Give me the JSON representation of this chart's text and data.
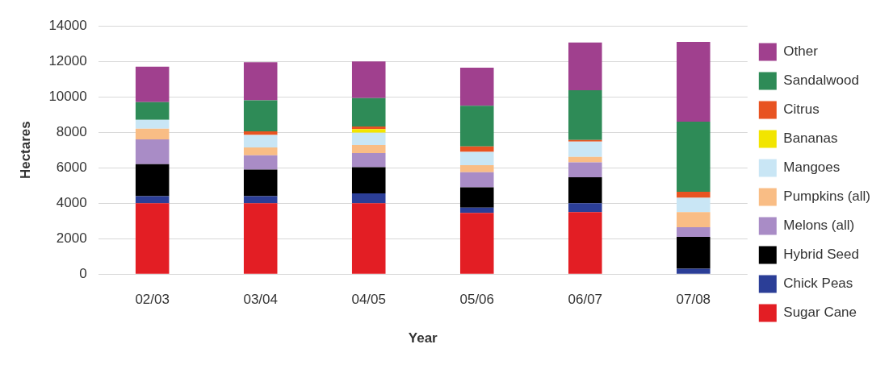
{
  "chart_data": {
    "type": "bar",
    "stacked": true,
    "xlabel": "Year",
    "ylabel": "Hectares",
    "categories": [
      "02/03",
      "03/04",
      "04/05",
      "05/06",
      "06/07",
      "07/08"
    ],
    "series": [
      {
        "name": "Sugar Cane",
        "color": "#e31e24",
        "values": [
          4000,
          4000,
          4000,
          3450,
          3500,
          0
        ]
      },
      {
        "name": "Chick Peas",
        "color": "#2b3e97",
        "values": [
          400,
          400,
          550,
          300,
          500,
          300
        ]
      },
      {
        "name": "Hybrid Seed",
        "color": "#000000",
        "values": [
          1800,
          1500,
          1480,
          1140,
          1460,
          1800
        ]
      },
      {
        "name": "Melons (all)",
        "color": "#a98cc6",
        "values": [
          1400,
          800,
          800,
          860,
          850,
          550
        ]
      },
      {
        "name": "Pumpkins (all)",
        "color": "#f9bd85",
        "values": [
          600,
          450,
          450,
          400,
          300,
          850
        ]
      },
      {
        "name": "Mangoes",
        "color": "#c9e6f5",
        "values": [
          500,
          700,
          700,
          750,
          860,
          800
        ]
      },
      {
        "name": "Bananas",
        "color": "#f2e500",
        "values": [
          0,
          0,
          200,
          0,
          0,
          0
        ]
      },
      {
        "name": "Citrus",
        "color": "#e85321",
        "values": [
          0,
          200,
          150,
          300,
          100,
          350
        ]
      },
      {
        "name": "Sandalwood",
        "color": "#2e8b57",
        "values": [
          1000,
          1750,
          1600,
          2300,
          2800,
          3950
        ]
      },
      {
        "name": "Other",
        "color": "#a0408e",
        "values": [
          2000,
          2150,
          2070,
          2150,
          2700,
          4500
        ]
      }
    ],
    "ylim": [
      0,
      14000
    ],
    "yticks": [
      0,
      2000,
      4000,
      6000,
      8000,
      10000,
      12000,
      14000
    ],
    "grid": "y",
    "legend": "right"
  }
}
